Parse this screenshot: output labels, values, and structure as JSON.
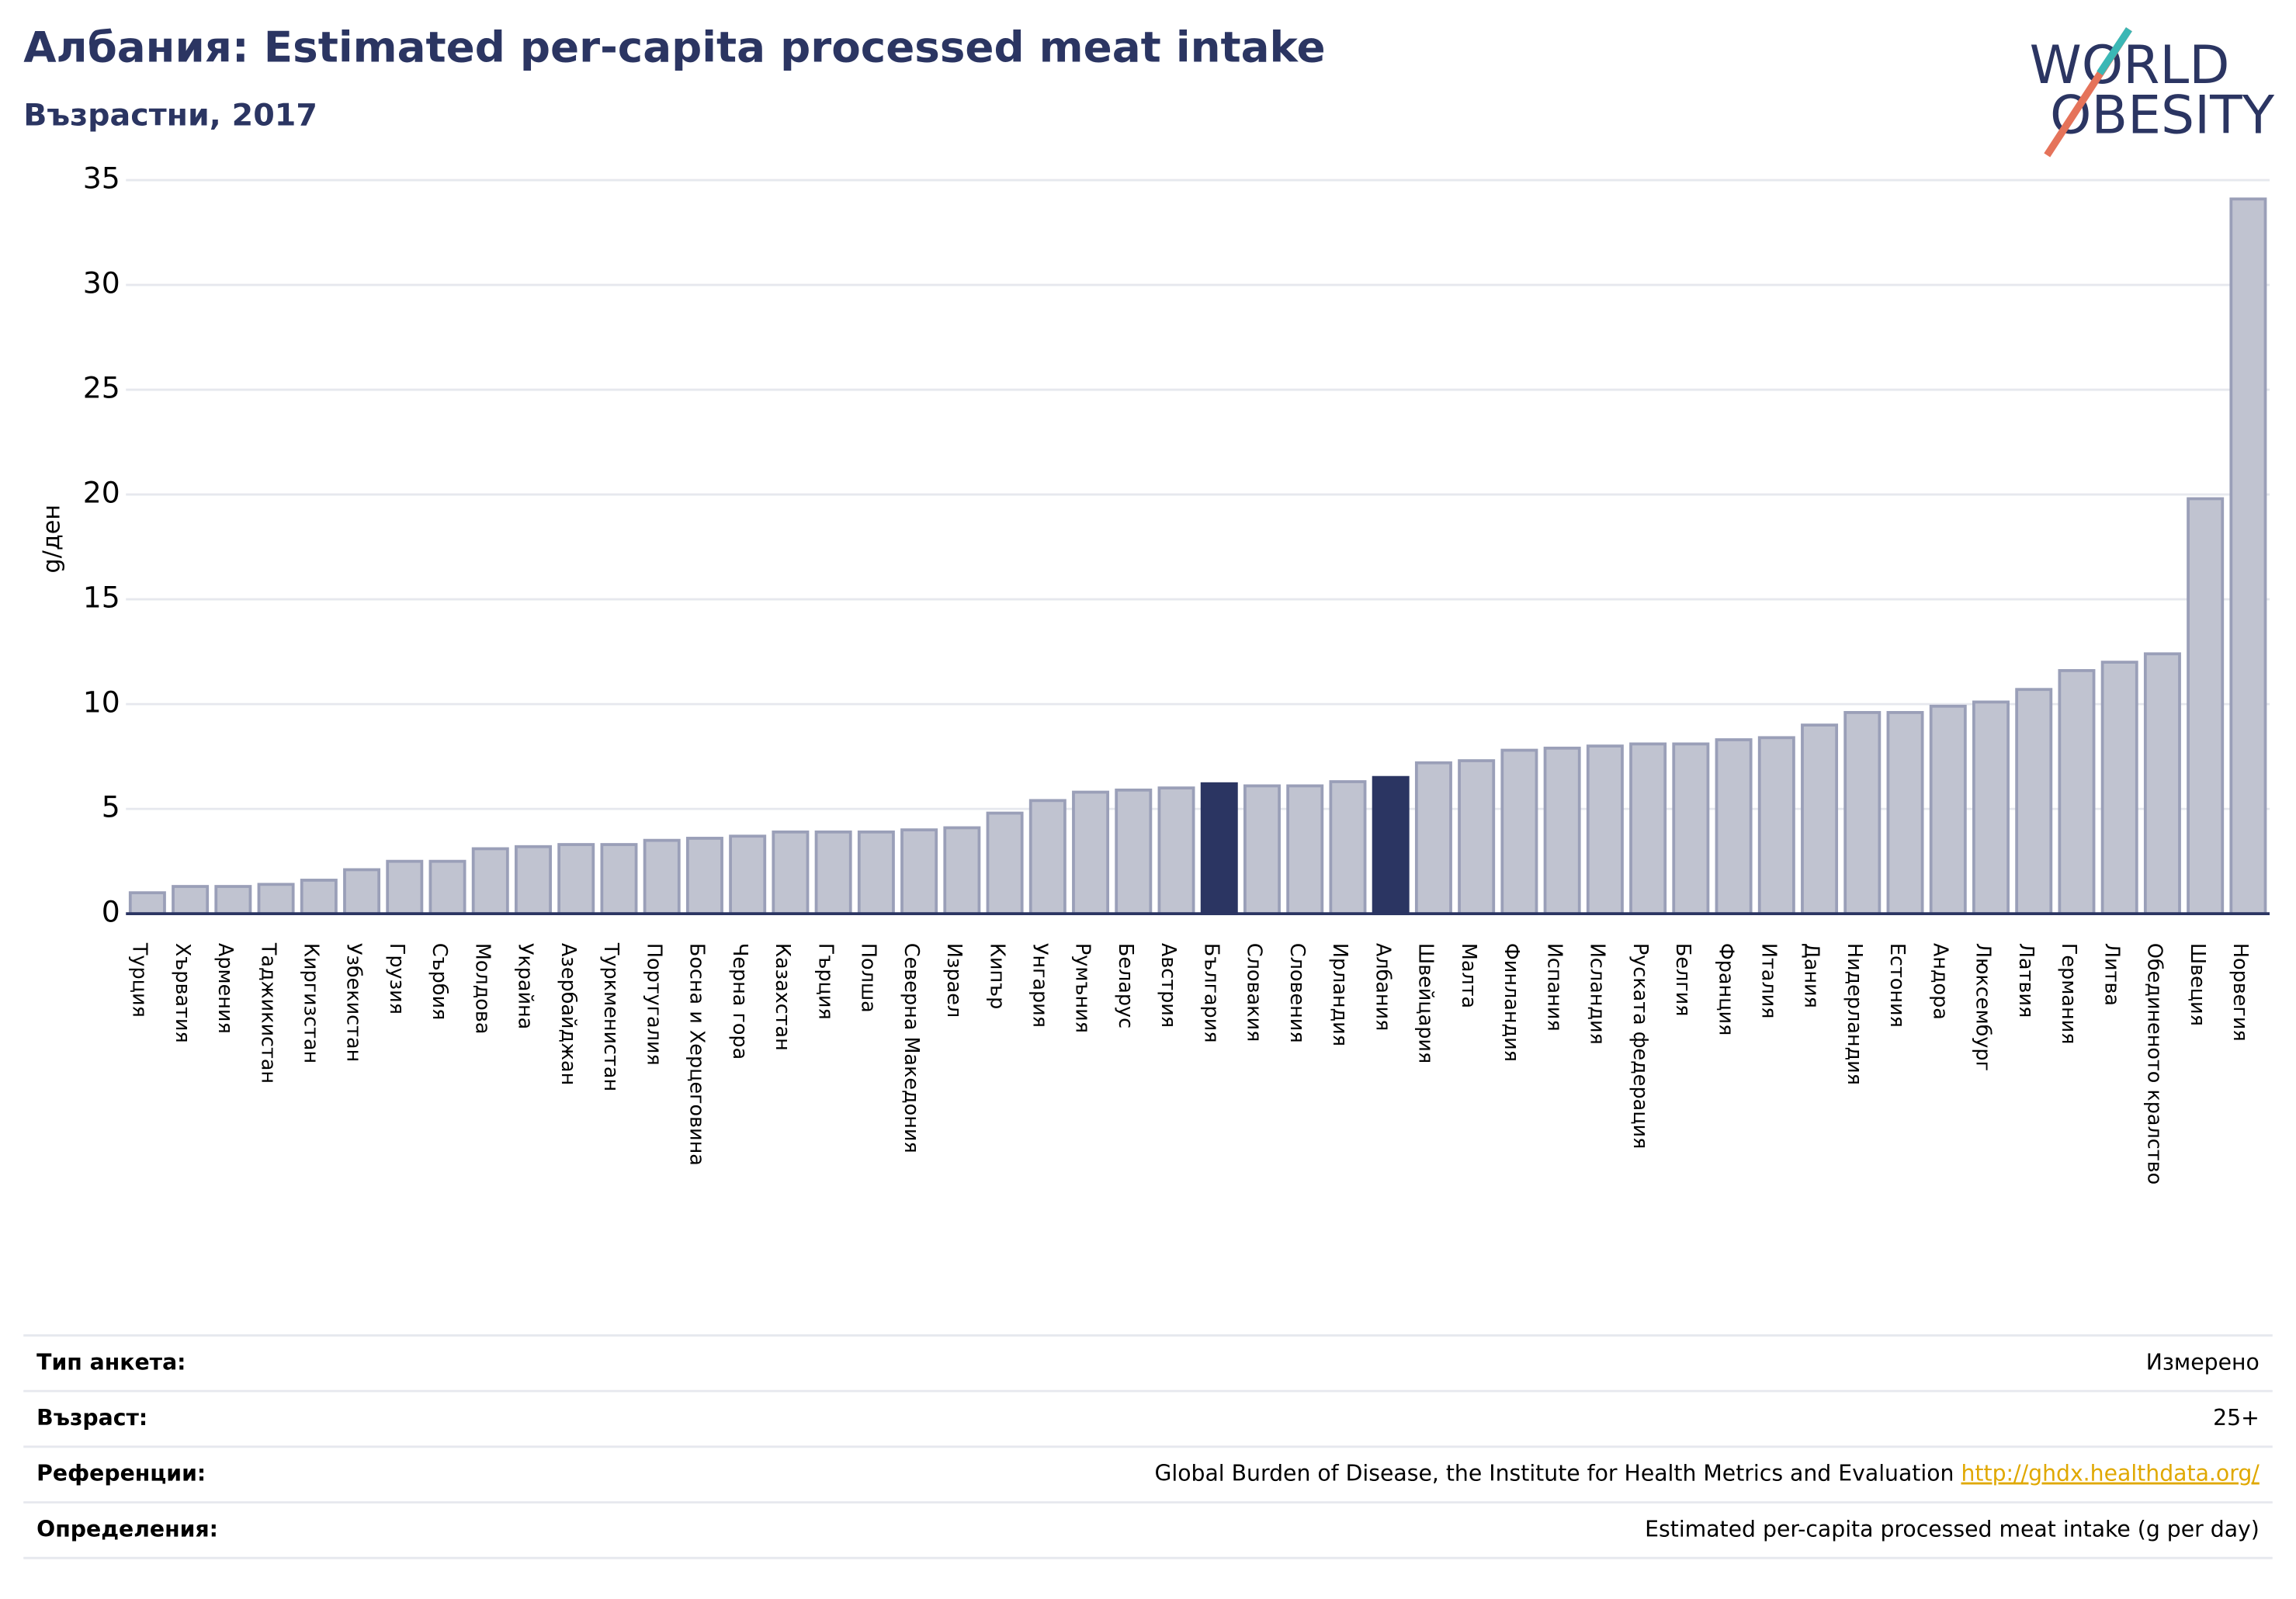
{
  "chart_data": {
    "type": "bar",
    "title": "Албания: Estimated per-capita processed meat intake",
    "subtitle": "Възрастни, 2017",
    "y_label": "g/ден",
    "categories": [
      "Турция",
      "Хърватия",
      "Армения",
      "Таджикистан",
      "Киргизстан",
      "Узбекистан",
      "Грузия",
      "Сърбия",
      "Молдова",
      "Украйна",
      "Азербайджан",
      "Туркменистан",
      "Португалия",
      "Босна и Херцеговина",
      "Черна гора",
      "Казахстан",
      "Гърция",
      "Полша",
      "Северна Македония",
      "Израел",
      "Кипър",
      "Унгария",
      "Румъния",
      "Беларус",
      "Австрия",
      "България",
      "Словакия",
      "Словения",
      "Ирландия",
      "Албания",
      "Швейцария",
      "Малта",
      "Финландия",
      "Испания",
      "Исландия",
      "Руската федерация",
      "Белгия",
      "Франция",
      "Италия",
      "Дания",
      "Нидерландия",
      "Естония",
      "Андора",
      "Люксембург",
      "Латвия",
      "Германия",
      "Литва",
      "Обединеното кралство",
      "Швеция",
      "Норвегия"
    ],
    "values": [
      1.0,
      1.3,
      1.3,
      1.4,
      1.6,
      2.1,
      2.5,
      2.5,
      3.1,
      3.2,
      3.3,
      3.3,
      3.5,
      3.6,
      3.7,
      3.9,
      3.9,
      3.9,
      4.0,
      4.1,
      4.8,
      5.4,
      5.8,
      5.9,
      6.0,
      6.2,
      6.1,
      6.1,
      6.3,
      6.5,
      7.2,
      7.3,
      7.8,
      7.9,
      8.0,
      8.1,
      8.1,
      8.3,
      8.4,
      9.0,
      9.6,
      9.6,
      9.9,
      10.1,
      10.7,
      11.6,
      12.0,
      12.4,
      19.8,
      34.1
    ],
    "color": "#c0c3d0",
    "highlight_color": "#2b3562",
    "highlight": [
      "България",
      "Албания"
    ],
    "ylim": [
      0,
      35
    ],
    "yticks": [
      0,
      5,
      10,
      15,
      20,
      25,
      30,
      35
    ],
    "grid": true
  },
  "logo": [
    "WORLD",
    "OBESITY"
  ],
  "footer": [
    {
      "label": "Тип анкета:",
      "value": "Измерено"
    },
    {
      "label": "Възраст:",
      "value": "25+"
    },
    {
      "label": "Референции:",
      "value": "Global Burden of Disease, the Institute for Health Metrics and Evaluation",
      "link": "http://ghdx.healthdata.org/"
    },
    {
      "label": "Определения:",
      "value": "Estimated per-capita processed meat intake (g per day)"
    }
  ]
}
